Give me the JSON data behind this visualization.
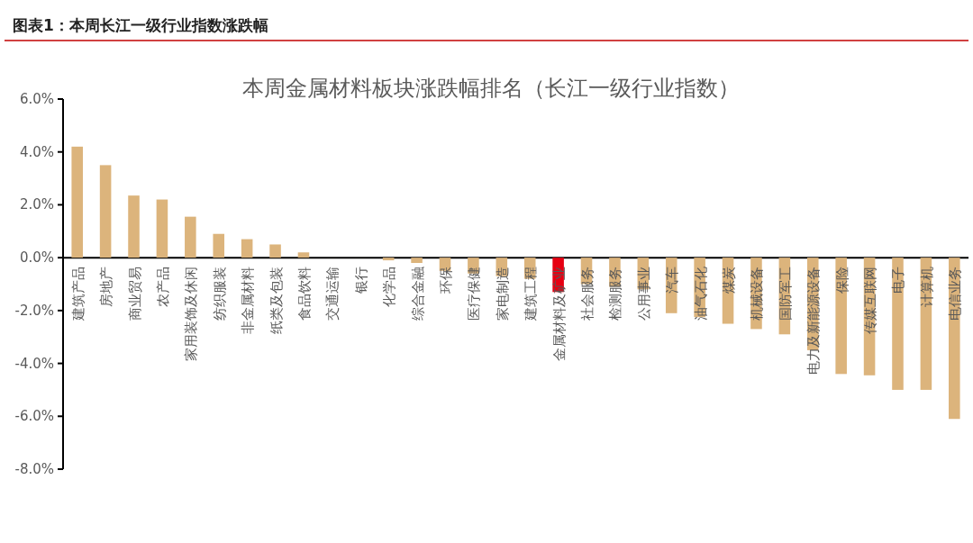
{
  "chart_data": {
    "type": "bar",
    "title": "图表1：本周长江一级行业指数涨跌幅",
    "subtitle": "本周金属材料板块涨跌幅排名（长江一级行业指数）",
    "categories": [
      "建筑产品",
      "房地产",
      "商业贸易",
      "农产品",
      "家用装饰及休闲",
      "纺织服装",
      "非金属材料",
      "纸类及包装",
      "食品饮料",
      "交通运输",
      "银行",
      "化学品",
      "综合金融",
      "环保",
      "医疗保健",
      "家电制造",
      "建筑工程",
      "金属材料及矿业",
      "社会服务",
      "检测服务",
      "公用事业",
      "汽车",
      "油气石化",
      "煤炭",
      "机械设备",
      "国防军工",
      "电力及新能源设备",
      "保险",
      "传媒互联网",
      "电子",
      "计算机",
      "电信业务"
    ],
    "values": [
      4.2,
      3.5,
      2.35,
      2.2,
      1.55,
      0.9,
      0.7,
      0.5,
      0.2,
      0,
      0,
      -0.1,
      -0.2,
      -0.5,
      -0.6,
      -0.7,
      -0.8,
      -1.3,
      -1.0,
      -1.1,
      -1.2,
      -2.1,
      -2.25,
      -2.5,
      -2.7,
      -2.9,
      -3.5,
      -4.4,
      -4.45,
      -5.0,
      -5.0,
      -6.1
    ],
    "colors": [
      "#dcb47c",
      "#dcb47c",
      "#dcb47c",
      "#dcb47c",
      "#dcb47c",
      "#dcb47c",
      "#dcb47c",
      "#dcb47c",
      "#dcb47c",
      "#dcb47c",
      "#dcb47c",
      "#dcb47c",
      "#dcb47c",
      "#dcb47c",
      "#dcb47c",
      "#dcb47c",
      "#dcb47c",
      "#e60012",
      "#dcb47c",
      "#dcb47c",
      "#dcb47c",
      "#dcb47c",
      "#dcb47c",
      "#dcb47c",
      "#dcb47c",
      "#dcb47c",
      "#dcb47c",
      "#dcb47c",
      "#dcb47c",
      "#dcb47c",
      "#dcb47c",
      "#dcb47c"
    ],
    "ylim": [
      -8,
      6
    ],
    "yticks": [
      {
        "value": 6,
        "label": "6.0%"
      },
      {
        "value": 4,
        "label": "4.0%"
      },
      {
        "value": 2,
        "label": "2.0%"
      },
      {
        "value": 0,
        "label": "0.0%"
      },
      {
        "value": -2,
        "label": "-2.0%"
      },
      {
        "value": -4,
        "label": "-4.0%"
      },
      {
        "value": -6,
        "label": "-6.0%"
      },
      {
        "value": -8,
        "label": "-8.0%"
      }
    ],
    "grid": false
  }
}
